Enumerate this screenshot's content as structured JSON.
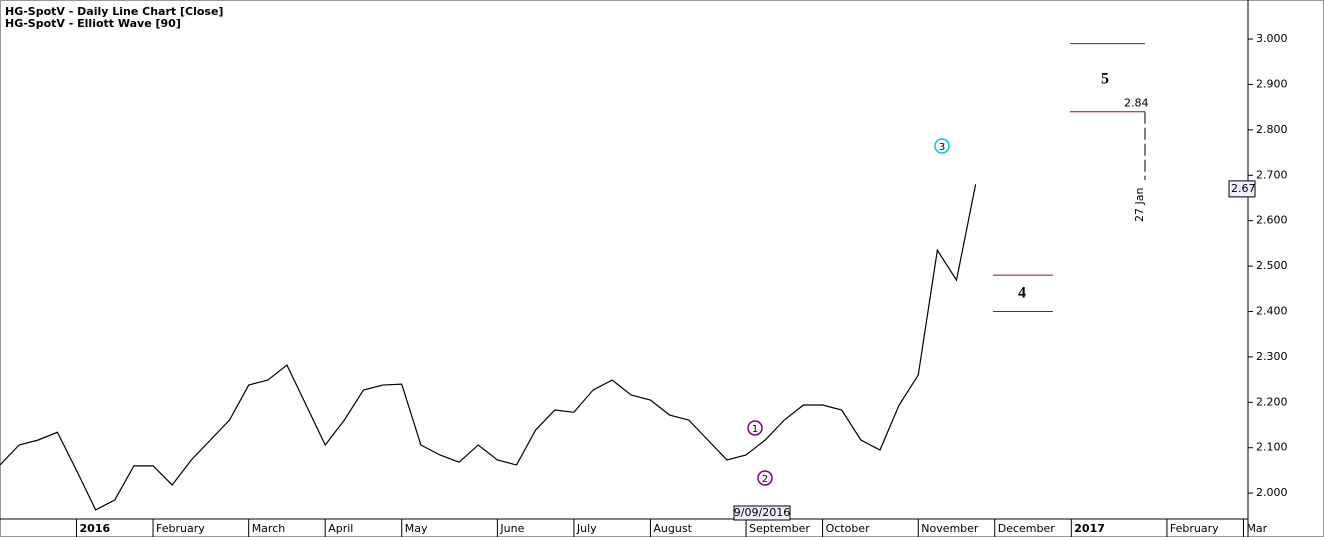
{
  "chart_data": {
    "type": "line",
    "titles": [
      "HG-SpotV - Daily Line Chart [Close]",
      "HG-SpotV - Elliott Wave [90]"
    ],
    "categories": [
      null,
      null,
      null,
      null,
      "2016",
      null,
      null,
      null,
      "February",
      null,
      null,
      null,
      null,
      "March",
      null,
      null,
      null,
      "April",
      null,
      null,
      null,
      "May",
      null,
      null,
      null,
      null,
      "June",
      null,
      null,
      null,
      "July",
      null,
      null,
      null,
      "August",
      null,
      null,
      null,
      null,
      "September",
      null,
      null,
      null,
      "October",
      null,
      null,
      null,
      null,
      "November",
      null,
      null,
      null,
      "December",
      null,
      null,
      null,
      "2017",
      null,
      null,
      null,
      null,
      "February",
      null,
      null,
      null,
      "Mar"
    ],
    "values": [
      2.062,
      2.106,
      2.117,
      2.134,
      2.05,
      1.963,
      1.985,
      2.06,
      2.06,
      2.018,
      2.073,
      2.117,
      2.161,
      2.238,
      2.249,
      2.282,
      2.194,
      2.106,
      2.161,
      2.227,
      2.238,
      2.24,
      2.106,
      2.084,
      2.068,
      2.106,
      2.073,
      2.062,
      2.139,
      2.183,
      2.178,
      2.227,
      2.249,
      2.216,
      2.205,
      2.172,
      2.161,
      2.117,
      2.073,
      2.084,
      2.117,
      2.161,
      2.194,
      2.194,
      2.183,
      2.117,
      2.095,
      2.194,
      2.26,
      2.535,
      2.469,
      2.68,
      null,
      null,
      null,
      null,
      null,
      null,
      null,
      null,
      null,
      null,
      null,
      null,
      null,
      null
    ],
    "color": "#000000",
    "projection": [
      null,
      null,
      null,
      null,
      null,
      null,
      null,
      null,
      null,
      null,
      null,
      null,
      null,
      null,
      null,
      null,
      null,
      null,
      null,
      null,
      null,
      null,
      null,
      null,
      null,
      null,
      null,
      null,
      null,
      null,
      null,
      null,
      null,
      null,
      null,
      null,
      null,
      null,
      null,
      null,
      null,
      null,
      null,
      null,
      null,
      null,
      null,
      null,
      null,
      2.735,
      null,
      null,
      null,
      2.462,
      null,
      null,
      null,
      null,
      2.899,
      null,
      null,
      null,
      null,
      null,
      null,
      null
    ],
    "levels": [
      2.99,
      2.84,
      2.48,
      2.4
    ],
    "level_color": "#8b1a1a",
    "last_value": 2.67,
    "waves": [
      "1",
      "2",
      "3",
      "4",
      "5"
    ],
    "date_marker": "9/09/2016",
    "time_label": "27 Jan",
    "ylim": [
      1.943,
      3.086
    ],
    "yticks": [
      {
        "value": 2.0,
        "label": "2.000"
      },
      {
        "value": 2.1,
        "label": "2.100"
      },
      {
        "value": 2.2,
        "label": "2.200"
      },
      {
        "value": 2.3,
        "label": "2.300"
      },
      {
        "value": 2.4,
        "label": "2.400"
      },
      {
        "value": 2.5,
        "label": "2.500"
      },
      {
        "value": 2.6,
        "label": "2.600"
      },
      {
        "value": 2.7,
        "label": "2.700"
      },
      {
        "value": 2.8,
        "label": "2.800"
      },
      {
        "value": 2.9,
        "label": "2.900"
      },
      {
        "value": 3.0,
        "label": "3.000"
      }
    ]
  }
}
